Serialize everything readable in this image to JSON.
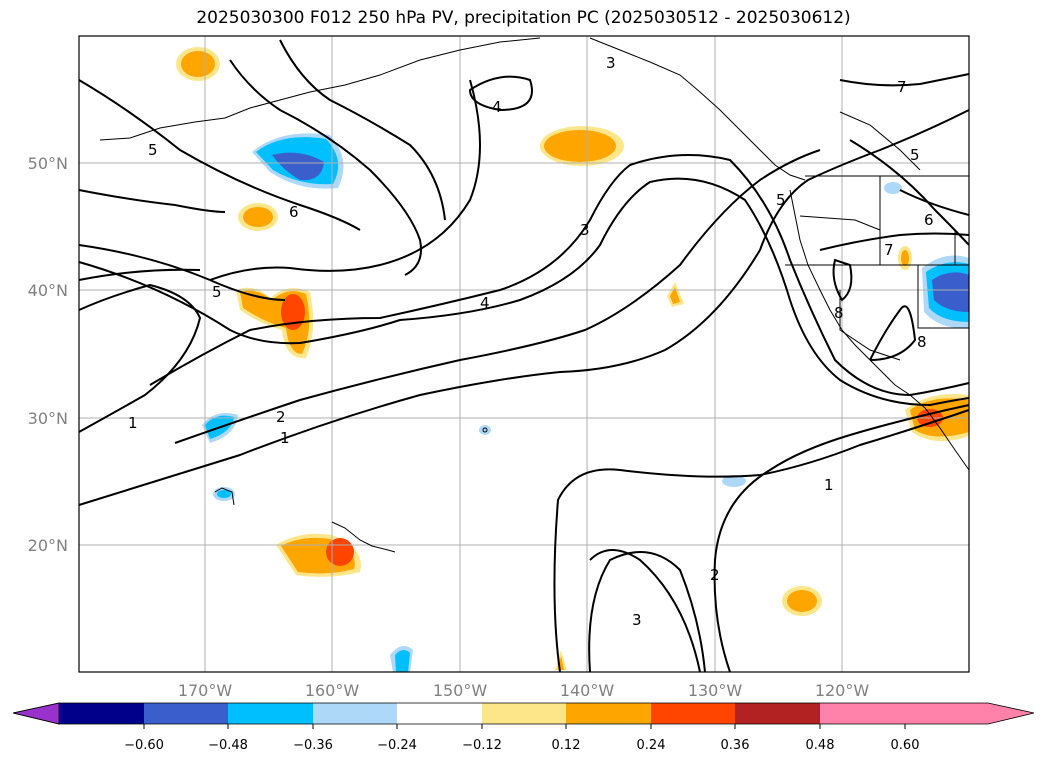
{
  "title": "2025030300 F012 250 hPa PV, precipitation PC (2025030512 - 2025030612)",
  "lat_labels": [
    "50°N",
    "40°N",
    "30°N",
    "20°N"
  ],
  "lon_labels": [
    "170°W",
    "160°W",
    "150°W",
    "140°W",
    "130°W",
    "120°W"
  ],
  "contour_labels": [
    "1",
    "1",
    "1",
    "2",
    "2",
    "3",
    "3",
    "3",
    "4",
    "4",
    "5",
    "5",
    "5",
    "5",
    "6",
    "6",
    "7",
    "7",
    "8",
    "8"
  ],
  "colorbar": {
    "ticks": [
      "−0.60",
      "−0.48",
      "−0.36",
      "−0.24",
      "−0.12",
      "0.12",
      "0.24",
      "0.36",
      "0.48",
      "0.60"
    ],
    "colors": [
      "#9932cc",
      "#00008b",
      "#3a5fcd",
      "#00bfff",
      "#add8f7",
      "#ffffff",
      "#fde68a",
      "#ffa500",
      "#ff4500",
      "#b22222",
      "#ff82ab"
    ]
  }
}
